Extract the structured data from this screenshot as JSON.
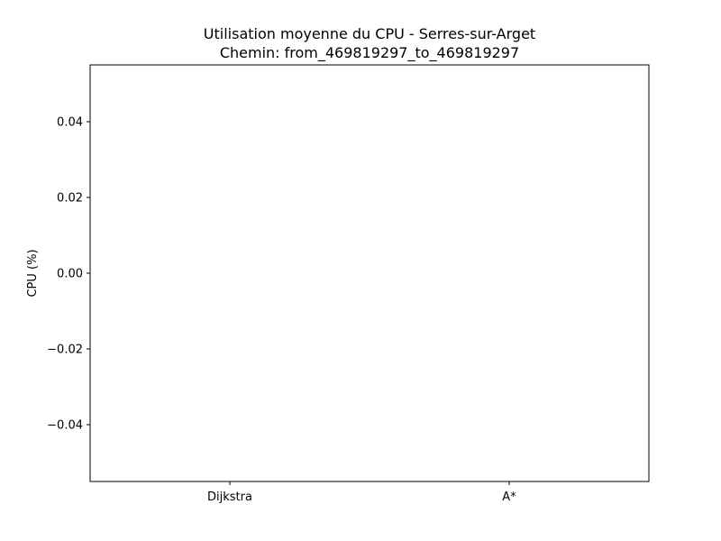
{
  "chart_data": {
    "type": "bar",
    "title": "Utilisation moyenne du CPU - Serres-sur-Arget",
    "subtitle": "Chemin: from_469819297_to_469819297",
    "xlabel": "",
    "ylabel": "CPU (%)",
    "categories": [
      "Dijkstra",
      "A*"
    ],
    "values": [
      0,
      0
    ],
    "ylim": [
      -0.055,
      0.055
    ],
    "yticks": [
      -0.04,
      -0.02,
      0.0,
      0.02,
      0.04
    ],
    "ytick_labels": [
      "−0.04",
      "−0.02",
      "0.00",
      "0.02",
      "0.04"
    ],
    "grid": false,
    "colors": {
      "bar": "#1f77b4",
      "axis": "#000000",
      "background": "#ffffff"
    }
  }
}
